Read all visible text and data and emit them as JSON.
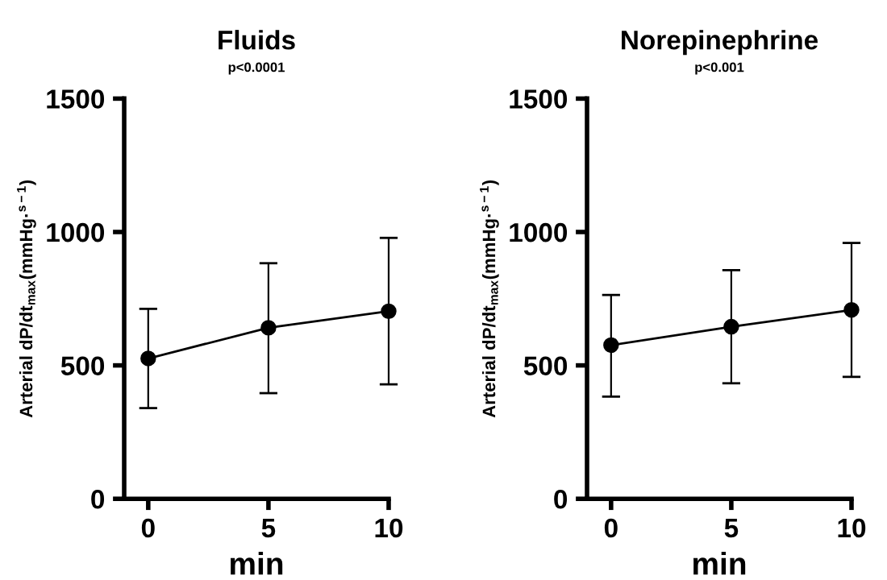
{
  "chart_data": [
    {
      "type": "line",
      "title": "Fluids",
      "subtitle": "p<0.0001",
      "xlabel": "min",
      "ylabel": "Arterial dP/dt$_{max}$(mmHg·$^{s−1}$)",
      "x": [
        0,
        5,
        10
      ],
      "series": [
        {
          "color": "#000000",
          "values": [
            526,
            641,
            703
          ],
          "errors": [
            [
              340,
              712
            ],
            [
              396,
              883
            ],
            [
              429,
              978
            ]
          ]
        }
      ],
      "xlim": [
        -1,
        10
      ],
      "xticks": [
        0,
        5,
        10
      ],
      "ylim": [
        0,
        1500
      ],
      "yticks": [
        0,
        500,
        1000,
        1500
      ],
      "marker": "circle",
      "line_style": "solid",
      "grid": false,
      "legend": false
    },
    {
      "type": "line",
      "title": "Norepinephrine",
      "subtitle": "p<0.001",
      "xlabel": "min",
      "ylabel": "Arterial dP/dt$_{max}$(mmHg·$^{s−1}$)",
      "x": [
        0,
        5,
        10
      ],
      "series": [
        {
          "color": "#000000",
          "values": [
            576,
            645,
            708
          ],
          "errors": [
            [
              383,
              764
            ],
            [
              433,
              857
            ],
            [
              457,
              959
            ]
          ]
        }
      ],
      "xlim": [
        -1,
        10
      ],
      "xticks": [
        0,
        5,
        10
      ],
      "ylim": [
        0,
        1500
      ],
      "yticks": [
        0,
        500,
        1000,
        1500
      ],
      "marker": "circle",
      "line_style": "solid",
      "grid": false,
      "legend": false
    }
  ]
}
